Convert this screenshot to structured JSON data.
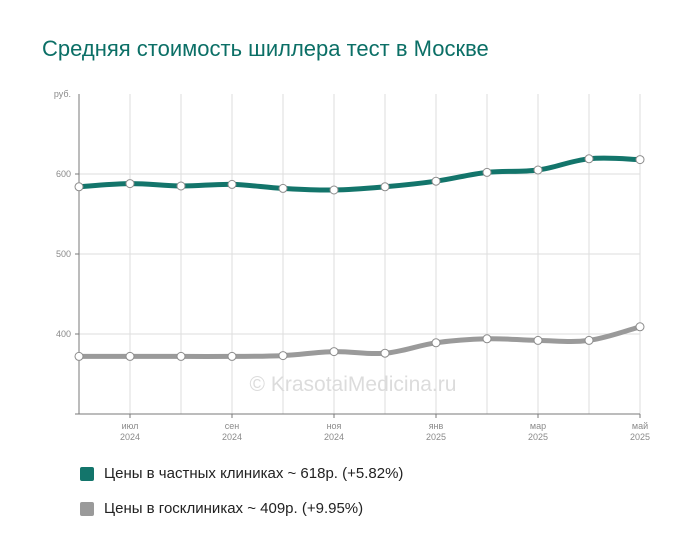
{
  "title": "Средняя стоимость шиллера тест в Москве",
  "watermark": "© KrasotaiMedicina.ru",
  "chart_data": {
    "type": "line",
    "y_unit": "руб.",
    "y_ticks": [
      400,
      500,
      600
    ],
    "ylim": [
      300,
      700
    ],
    "grid": true,
    "x_points": 12,
    "x_labels": [
      {
        "index": 1,
        "month": "июл",
        "year": "2024"
      },
      {
        "index": 3,
        "month": "сен",
        "year": "2024"
      },
      {
        "index": 5,
        "month": "ноя",
        "year": "2024"
      },
      {
        "index": 7,
        "month": "янв",
        "year": "2025"
      },
      {
        "index": 9,
        "month": "мар",
        "year": "2025"
      },
      {
        "index": 11,
        "month": "май",
        "year": "2025"
      }
    ],
    "series": [
      {
        "name": "Цены в частных клиниках",
        "color": "#13756b",
        "values": [
          584,
          588,
          585,
          587,
          582,
          580,
          584,
          591,
          602,
          605,
          619,
          618
        ]
      },
      {
        "name": "Цены в госклиниках",
        "color": "#9a9a9a",
        "values": [
          372,
          372,
          372,
          372,
          373,
          378,
          376,
          389,
          394,
          392,
          392,
          409
        ]
      }
    ]
  },
  "legend": {
    "private": {
      "label": "Цены в частных клиниках ~ 618р. (+5.82%)",
      "color": "#13756b"
    },
    "public": {
      "label": "Цены в госклиниках ~ 409р. (+9.95%)",
      "color": "#9a9a9a"
    }
  }
}
